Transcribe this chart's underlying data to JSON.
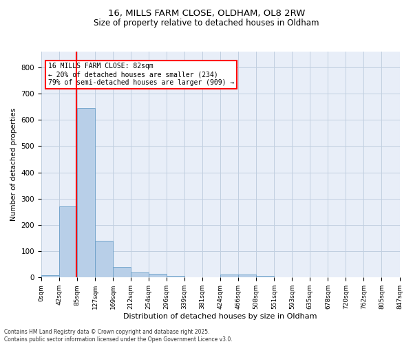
{
  "title_line1": "16, MILLS FARM CLOSE, OLDHAM, OL8 2RW",
  "title_line2": "Size of property relative to detached houses in Oldham",
  "xlabel": "Distribution of detached houses by size in Oldham",
  "ylabel": "Number of detached properties",
  "footer_line1": "Contains HM Land Registry data © Crown copyright and database right 2025.",
  "footer_line2": "Contains public sector information licensed under the Open Government Licence v3.0.",
  "annotation_line1": "16 MILLS FARM CLOSE: 82sqm",
  "annotation_line2": "← 20% of detached houses are smaller (234)",
  "annotation_line3": "79% of semi-detached houses are larger (909) →",
  "bar_values": [
    8,
    270,
    645,
    140,
    40,
    20,
    13,
    5,
    2,
    1,
    11,
    11,
    6,
    2,
    1,
    1,
    1,
    1,
    1
  ],
  "bin_labels": [
    "0sqm",
    "42sqm",
    "85sqm",
    "127sqm",
    "169sqm",
    "212sqm",
    "254sqm",
    "296sqm",
    "339sqm",
    "381sqm",
    "424sqm",
    "466sqm",
    "508sqm",
    "551sqm",
    "593sqm",
    "635sqm",
    "678sqm",
    "720sqm",
    "762sqm",
    "805sqm",
    "847sqm"
  ],
  "bar_color": "#b8cfe8",
  "bar_edge_color": "#6a9fc8",
  "grid_color": "#c0cfe0",
  "bg_color": "#e8eef8",
  "annotation_box_color": "#cc0000",
  "ylim": [
    0,
    860
  ],
  "yticks": [
    0,
    100,
    200,
    300,
    400,
    500,
    600,
    700,
    800
  ],
  "red_line_bin_index": 1.95,
  "fig_width": 6.0,
  "fig_height": 5.0,
  "dpi": 100
}
